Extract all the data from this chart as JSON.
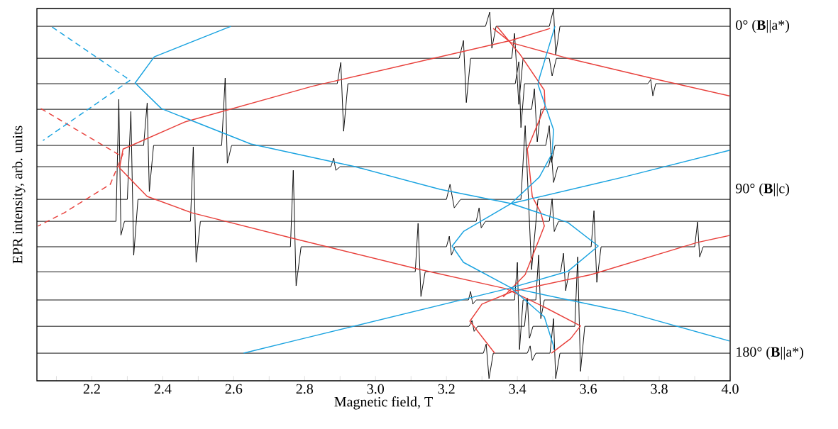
{
  "chart_data": {
    "type": "line",
    "xlabel": "Magnetic field, T",
    "ylabel": "EPR intensity, arb. units",
    "xlim": [
      2.045,
      4.0
    ],
    "ylim": [
      195.2,
      -9.8
    ],
    "xticks": [
      {
        "value": 2.1,
        "label": null
      },
      2.2,
      {
        "value": 2.3,
        "label": null
      },
      2.4,
      {
        "value": 2.5,
        "label": null
      },
      2.6,
      {
        "value": 2.7,
        "label": null
      },
      2.8,
      {
        "value": 2.9,
        "label": null
      },
      {
        "value": 3.0,
        "label": "3.0"
      },
      {
        "value": 3.1,
        "label": null
      },
      3.2,
      {
        "value": 3.3,
        "label": null
      },
      3.4,
      {
        "value": 3.5,
        "label": null
      },
      3.6,
      {
        "value": 3.7,
        "label": null
      },
      3.8,
      {
        "value": 3.9,
        "label": null
      },
      {
        "value": 4.0,
        "label": "4.0"
      }
    ],
    "yticks": [
      {
        "value": 0,
        "label": "0° (**B**||a*)"
      },
      {
        "value": 90,
        "label": "90° (**B**||c)"
      },
      {
        "value": 180,
        "label": "180° (**B**||a*)"
      }
    ],
    "series": [
      {
        "color": "#000000",
        "x": [
          2.045,
          3.31,
          3.322,
          3.328,
          3.34,
          3.49,
          3.502,
          3.508,
          3.52,
          4.0
        ],
        "values": [
          0,
          0,
          -7.8,
          12.1,
          0,
          0,
          -9.4,
          15.6,
          0,
          0
        ]
      },
      {
        "color": "#000000",
        "x": [
          2.045,
          3.236,
          3.248,
          3.256,
          3.268,
          3.384,
          3.392,
          3.404,
          3.416,
          3.49,
          3.498,
          3.51,
          4.0
        ],
        "values": [
          17.6,
          17.6,
          7.8,
          42,
          17.6,
          17.6,
          3.9,
          43,
          17.6,
          17.6,
          27.3,
          17.6,
          17.6
        ]
      },
      {
        "color": "#000000",
        "x": [
          2.045,
          2.892,
          2.902,
          2.91,
          2.922,
          3.394,
          3.404,
          3.41,
          3.42,
          3.768,
          3.776,
          3.782,
          3.79,
          4.0
        ],
        "values": [
          31.6,
          31.6,
          19.9,
          57.8,
          31.6,
          31.6,
          19.5,
          55.8,
          31.6,
          31.6,
          29.3,
          38.3,
          31.6,
          31.6
        ]
      },
      {
        "color": "#000000",
        "x": [
          2.045,
          3.44,
          3.448,
          3.456,
          3.466,
          4.0
        ],
        "values": [
          45.7,
          45.7,
          34.4,
          63.6,
          45.7,
          45.7
        ]
      },
      {
        "color": "#000000",
        "x": [
          2.045,
          2.346,
          2.356,
          2.362,
          2.374,
          2.566,
          2.576,
          2.582,
          2.594,
          3.48,
          3.49,
          3.496,
          3.506,
          4.0
        ],
        "values": [
          65.6,
          65.6,
          42.2,
          91,
          65.6,
          65.6,
          28.5,
          75.4,
          65.6,
          65.6,
          54.7,
          75,
          65.6,
          65.6
        ]
      },
      {
        "color": "#000000",
        "x": [
          2.045,
          2.874,
          2.882,
          2.888,
          2.9,
          3.488,
          3.496,
          3.502,
          3.514,
          4.0
        ],
        "values": [
          77.3,
          77.3,
          72.6,
          79.3,
          77.3,
          77.3,
          70,
          86,
          77.3,
          77.3
        ]
      },
      {
        "color": "#000000",
        "x": [
          2.045,
          2.3,
          2.31,
          2.318,
          2.33,
          3.2,
          3.21,
          3.222,
          3.24,
          3.41,
          3.422,
          3.44,
          3.458,
          4.0
        ],
        "values": [
          95.3,
          95.3,
          46.9,
          126.1,
          95.3,
          95.3,
          87,
          100,
          95.3,
          95.3,
          54.7,
          134,
          95.3,
          95.3
        ]
      },
      {
        "color": "#000000",
        "x": [
          2.045,
          2.268,
          2.276,
          2.282,
          2.292,
          2.478,
          2.486,
          2.494,
          2.506,
          3.284,
          3.292,
          3.298,
          3.31,
          3.49,
          3.498,
          3.504,
          3.516,
          4.0
        ],
        "values": [
          107.4,
          107.4,
          40.2,
          115,
          107.4,
          107.4,
          66.4,
          130,
          107.4,
          107.4,
          100,
          111,
          107.4,
          107.4,
          95,
          113,
          107.4,
          107.4
        ]
      },
      {
        "color": "#000000",
        "x": [
          2.045,
          2.76,
          2.768,
          2.776,
          2.79,
          3.2,
          3.208,
          3.214,
          3.224,
          3.608,
          3.616,
          3.624,
          3.636,
          3.9,
          3.908,
          3.914,
          3.924,
          4.0
        ],
        "values": [
          121.4,
          121.4,
          79.3,
          142.9,
          121.4,
          121.4,
          115.6,
          126,
          121.4,
          121.4,
          101.5,
          141,
          121.4,
          121.4,
          107.8,
          127,
          121.4,
          121.4
        ]
      },
      {
        "color": "#000000",
        "x": [
          2.045,
          3.112,
          3.12,
          3.128,
          3.14,
          3.522,
          3.53,
          3.536,
          3.546,
          4.0
        ],
        "values": [
          135.2,
          135.2,
          108.5,
          148.8,
          135.2,
          135.2,
          125,
          145.6,
          135.2,
          135.2
        ]
      },
      {
        "color": "#000000",
        "x": [
          2.045,
          3.262,
          3.268,
          3.274,
          3.284,
          3.392,
          3.4,
          3.406,
          3.416,
          3.452,
          3.46,
          3.466,
          3.476,
          4.0
        ],
        "values": [
          150.7,
          150.7,
          146,
          153,
          150.7,
          150.7,
          130,
          178,
          150.7,
          150.7,
          126,
          161,
          150.7,
          150.7
        ]
      },
      {
        "color": "#000000",
        "x": [
          2.045,
          3.264,
          3.272,
          3.278,
          3.288,
          3.42,
          3.428,
          3.434,
          3.444,
          3.562,
          3.57,
          3.578,
          3.59,
          4.0
        ],
        "values": [
          165.2,
          165.2,
          162,
          168,
          165.2,
          165.2,
          149.6,
          171.8,
          165.2,
          165.2,
          127,
          190,
          165.2,
          165.2
        ]
      },
      {
        "color": "#000000",
        "x": [
          2.045,
          3.304,
          3.312,
          3.32,
          3.332,
          3.428,
          3.436,
          3.442,
          3.452,
          3.492,
          3.502,
          3.508,
          3.52,
          4.0
        ],
        "values": [
          180,
          180,
          175,
          194,
          180,
          180,
          176,
          184,
          180,
          180,
          161,
          194,
          180,
          180
        ]
      },
      {
        "color": "#e8413c",
        "x": [
          3.492,
          3.382,
          2.822,
          2.462,
          2.288,
          2.278,
          2.356,
          2.482,
          2.782,
          3.116,
          3.368,
          3.476,
          3.578,
          3.55,
          3.496
        ],
        "values": [
          1.2,
          7.8,
          33,
          52.7,
          67.6,
          78,
          93.7,
          102.7,
          117.5,
          133.5,
          144.5,
          154.6,
          165,
          172,
          180
        ]
      },
      {
        "color": "#e8413c",
        "x": [
          3.332,
          3.382,
          3.542,
          3.776,
          3.998
        ],
        "values": [
          1.2,
          9,
          17.6,
          28.5,
          38.3
        ]
      },
      {
        "color": "#e8413c",
        "x": [
          3.336,
          3.266,
          3.3,
          3.386,
          3.608,
          3.908,
          3.998
        ],
        "values": [
          180,
          162.4,
          153,
          146,
          136.7,
          119,
          115.2
        ]
      },
      {
        "color": "#e8413c",
        "x": [
          3.342,
          3.408,
          3.476,
          3.478,
          3.428,
          3.442,
          3.466,
          3.476,
          3.422,
          3.36
        ],
        "values": [
          0,
          15.6,
          35.2,
          44,
          67.6,
          93.7,
          102.7,
          110,
          136.7,
          149
        ]
      },
      {
        "color": "#e8413c",
        "line_style": "dashed",
        "x": [
          2.056,
          2.276
        ],
        "values": [
          45.3,
          70.7
        ]
      },
      {
        "color": "#e8413c",
        "line_style": "dashed",
        "x": [
          2.288,
          2.252,
          2.122,
          2.048
        ],
        "values": [
          70,
          87,
          102.7,
          110
        ]
      },
      {
        "color": "#1aa3e0",
        "x": [
          2.592,
          2.376,
          2.322,
          2.396,
          2.648,
          2.822,
          2.942,
          3.182,
          3.382,
          3.7,
          3.998
        ],
        "values": [
          0,
          16.8,
          31.2,
          45.3,
          64.8,
          72.2,
          77.3,
          89.8,
          97.6,
          83,
          68.3
        ]
      },
      {
        "color": "#1aa3e0",
        "x": [
          3.506,
          3.462,
          3.458,
          3.502,
          3.498,
          3.462,
          3.382,
          3.248,
          3.216,
          3.248,
          3.382
        ],
        "values": [
          0,
          28.5,
          32,
          57,
          70,
          83,
          97.6,
          113,
          121,
          130,
          144
        ]
      },
      {
        "color": "#1aa3e0",
        "x": [
          3.382,
          3.542,
          3.628,
          3.542,
          3.382,
          3.476,
          3.502,
          3.502
        ],
        "values": [
          97.6,
          108,
          121,
          135,
          144,
          160,
          176,
          178
        ]
      },
      {
        "color": "#1aa3e0",
        "x": [
          2.628,
          2.782,
          3.382,
          3.7,
          3.998
        ],
        "values": [
          180,
          172.6,
          144,
          157,
          173.3
        ]
      },
      {
        "color": "#1aa3e0",
        "line_style": "dashed",
        "x": [
          2.088,
          2.308
        ],
        "values": [
          0.4,
          29.7
        ]
      },
      {
        "color": "#1aa3e0",
        "line_style": "dashed",
        "x": [
          2.308,
          2.062
        ],
        "values": [
          29.7,
          62.9
        ]
      }
    ]
  }
}
